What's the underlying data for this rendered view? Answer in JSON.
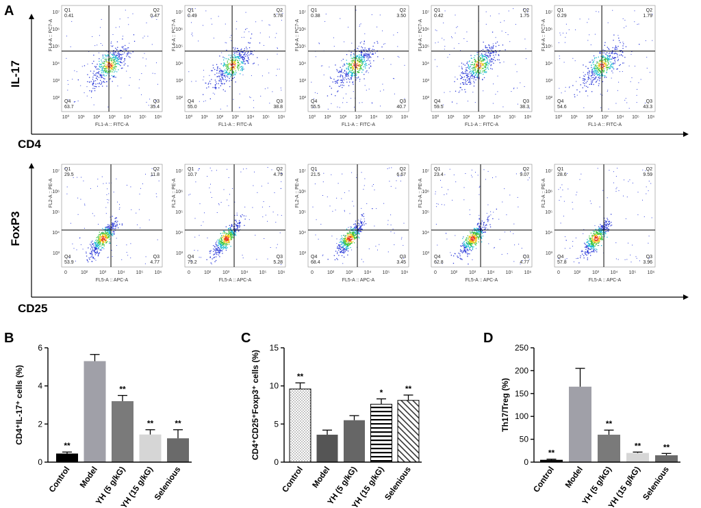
{
  "panel_a": {
    "letter": "A",
    "row1": {
      "y_marker": "IL-17",
      "x_marker": "CD4",
      "x_channel": "FL1-A :: FITC-A",
      "y_channel": "FL4-A :: PC7-A",
      "x_ticks": [
        "10⁰",
        "10¹",
        "10²",
        "10³",
        "10⁴",
        "10⁵",
        "10⁶"
      ],
      "y_ticks": [
        "10⁷",
        "10⁶",
        "10⁵",
        "10⁴",
        "10³",
        "10²"
      ],
      "plots": [
        {
          "q1": "0.41",
          "q2": "0.47",
          "q3": "35.4",
          "q4": "63.7"
        },
        {
          "q1": "0.49",
          "q2": "5.78",
          "q3": "38.8",
          "q4": "55.0"
        },
        {
          "q1": "0.38",
          "q2": "3.50",
          "q3": "40.7",
          "q4": "55.5"
        },
        {
          "q1": "0.42",
          "q2": "1.75",
          "q3": "38.3",
          "q4": "59.5"
        },
        {
          "q1": "0.29",
          "q2": "1.79",
          "q3": "43.3",
          "q4": "54.6"
        }
      ]
    },
    "row2": {
      "y_marker": "FoxP3",
      "x_marker": "CD25",
      "x_channel": "FL5-A :: APC-A",
      "y_channel": "FL2-A :: PE-A",
      "x_ticks": [
        "0",
        "10²",
        "10³",
        "10⁴",
        "10⁵",
        "10⁶"
      ],
      "y_ticks": [
        "10⁷",
        "10⁶",
        "10⁵",
        "10⁴",
        "10³"
      ],
      "plots": [
        {
          "q1": "29.5",
          "q2": "11.8",
          "q3": "4.77",
          "q4": "53.9"
        },
        {
          "q1": "10.7",
          "q2": "4.79",
          "q3": "5.28",
          "q4": "79.2"
        },
        {
          "q1": "21.5",
          "q2": "6.67",
          "q3": "3.45",
          "q4": "68.4"
        },
        {
          "q1": "23.4",
          "q2": "9.07",
          "q3": "4.77",
          "q4": "62.8"
        },
        {
          "q1": "28.6",
          "q2": "9.59",
          "q3": "3.96",
          "q4": "57.8"
        }
      ]
    },
    "quadrant_names": {
      "q1": "Q1",
      "q2": "Q2",
      "q3": "Q3",
      "q4": "Q4"
    }
  },
  "chart_data": [
    {
      "type": "bar",
      "letter": "B",
      "ylabel": "CD4⁺IL-17⁺ cells (%)",
      "ylim": [
        0,
        6
      ],
      "yticks": [
        0,
        2,
        4,
        6
      ],
      "categories": [
        "Control",
        "Model",
        "YH (5 g/kG)",
        "YH (15 g/kG)",
        "Selenious"
      ],
      "values": [
        0.45,
        5.3,
        3.2,
        1.45,
        1.25
      ],
      "errors": [
        0.08,
        0.35,
        0.3,
        0.25,
        0.45
      ],
      "significance": [
        "**",
        "",
        "**",
        "**",
        "**"
      ],
      "fills": [
        "#000000",
        "#a0a0a8",
        "#7a7a7a",
        "#d6d6d6",
        "#6a6a6a"
      ]
    },
    {
      "type": "bar",
      "letter": "C",
      "ylabel": "CD4⁺CD25⁺Foxp3⁺ cells (%)",
      "ylim": [
        0,
        15
      ],
      "yticks": [
        0,
        5,
        10,
        15
      ],
      "categories": [
        "Control",
        "Model",
        "YH (5 g/kG)",
        "YH (15 g/kG)",
        "Selenious"
      ],
      "values": [
        9.6,
        3.6,
        5.5,
        7.6,
        8.1
      ],
      "errors": [
        0.8,
        0.6,
        0.6,
        0.7,
        0.7
      ],
      "significance": [
        "**",
        "",
        "",
        "*",
        "**"
      ],
      "fills": [
        "dots",
        "#555555",
        "#666666",
        "hlines",
        "diag"
      ]
    },
    {
      "type": "bar",
      "letter": "D",
      "ylabel": "Th17/Treg (%)",
      "ylim": [
        0,
        250
      ],
      "yticks": [
        0,
        50,
        100,
        150,
        200,
        250
      ],
      "categories": [
        "Control",
        "Model",
        "YH (5 g/kG)",
        "YH (15 g/kG)",
        "Selenious"
      ],
      "values": [
        5,
        165,
        60,
        20,
        15
      ],
      "errors": [
        1.5,
        40,
        10,
        2,
        4
      ],
      "significance": [
        "**",
        "",
        "**",
        "**",
        "**"
      ],
      "fills": [
        "#000000",
        "#a0a0a8",
        "#7a7a7a",
        "#d6d6d6",
        "#6a6a6a"
      ]
    }
  ]
}
